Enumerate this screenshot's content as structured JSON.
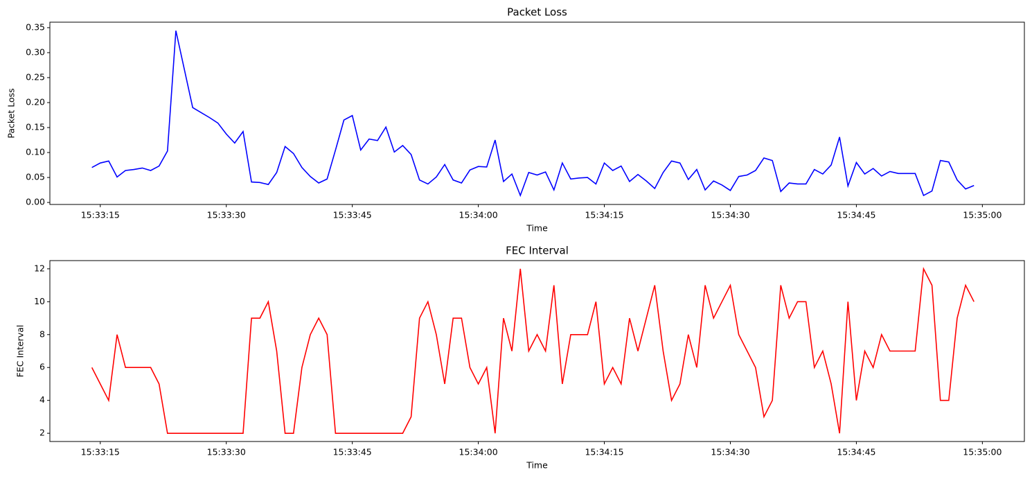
{
  "chart_data": [
    {
      "type": "line",
      "title": "Packet Loss",
      "xlabel": "Time",
      "ylabel": "Packet Loss",
      "color": "#0000ff",
      "x": [
        "15:33:14",
        "15:33:15",
        "15:33:16",
        "15:33:17",
        "15:33:18",
        "15:33:19",
        "15:33:20",
        "15:33:21",
        "15:33:22",
        "15:33:23",
        "15:33:24",
        "15:33:25",
        "15:33:26",
        "15:33:27",
        "15:33:28",
        "15:33:29",
        "15:33:30",
        "15:33:31",
        "15:33:32",
        "15:33:33",
        "15:33:34",
        "15:33:35",
        "15:33:36",
        "15:33:37",
        "15:33:38",
        "15:33:39",
        "15:33:40",
        "15:33:41",
        "15:33:42",
        "15:33:43",
        "15:33:44",
        "15:33:45",
        "15:33:46",
        "15:33:47",
        "15:33:48",
        "15:33:49",
        "15:33:50",
        "15:33:51",
        "15:33:52",
        "15:33:53",
        "15:33:54",
        "15:33:55",
        "15:33:56",
        "15:33:57",
        "15:33:58",
        "15:33:59",
        "15:34:00",
        "15:34:01",
        "15:34:02",
        "15:34:03",
        "15:34:04",
        "15:34:05",
        "15:34:06",
        "15:34:07",
        "15:34:08",
        "15:34:09",
        "15:34:10",
        "15:34:11",
        "15:34:12",
        "15:34:13",
        "15:34:14",
        "15:34:15",
        "15:34:16",
        "15:34:17",
        "15:34:18",
        "15:34:19",
        "15:34:20",
        "15:34:21",
        "15:34:22",
        "15:34:23",
        "15:34:24",
        "15:34:25",
        "15:34:26",
        "15:34:27",
        "15:34:28",
        "15:34:29",
        "15:34:30",
        "15:34:31",
        "15:34:32",
        "15:34:33",
        "15:34:34",
        "15:34:35",
        "15:34:36",
        "15:34:37",
        "15:34:38",
        "15:34:39",
        "15:34:40",
        "15:34:41",
        "15:34:42",
        "15:34:43",
        "15:34:44",
        "15:34:45",
        "15:34:46",
        "15:34:47",
        "15:34:48",
        "15:34:49",
        "15:34:50",
        "15:34:51",
        "15:34:52",
        "15:34:53",
        "15:34:54",
        "15:34:55",
        "15:34:56",
        "15:34:57",
        "15:34:58",
        "15:34:59"
      ],
      "values": [
        0.07,
        0.079,
        0.083,
        0.051,
        0.064,
        0.066,
        0.069,
        0.064,
        0.073,
        0.103,
        0.344,
        0.267,
        0.19,
        0.18,
        0.17,
        0.159,
        0.137,
        0.119,
        0.142,
        0.041,
        0.04,
        0.036,
        0.06,
        0.112,
        0.098,
        0.07,
        0.052,
        0.039,
        0.047,
        0.105,
        0.165,
        0.174,
        0.105,
        0.127,
        0.124,
        0.151,
        0.101,
        0.114,
        0.096,
        0.045,
        0.037,
        0.051,
        0.076,
        0.045,
        0.039,
        0.065,
        0.072,
        0.071,
        0.125,
        0.042,
        0.057,
        0.014,
        0.06,
        0.055,
        0.061,
        0.025,
        0.079,
        0.047,
        0.049,
        0.05,
        0.037,
        0.079,
        0.064,
        0.073,
        0.042,
        0.056,
        0.043,
        0.028,
        0.06,
        0.083,
        0.079,
        0.046,
        0.066,
        0.025,
        0.043,
        0.035,
        0.024,
        0.052,
        0.055,
        0.064,
        0.089,
        0.084,
        0.022,
        0.039,
        0.037,
        0.037,
        0.066,
        0.057,
        0.075,
        0.131,
        0.033,
        0.08,
        0.057,
        0.068,
        0.053,
        0.062,
        0.058,
        0.058,
        0.058,
        0.014,
        0.023,
        0.084,
        0.081,
        0.045,
        0.027,
        0.034
      ],
      "xlim": [
        "15:33:09",
        "15:35:05"
      ],
      "xticks": [
        "15:33:15",
        "15:33:30",
        "15:33:45",
        "15:34:00",
        "15:34:15",
        "15:34:30",
        "15:34:45",
        "15:35:00"
      ],
      "ylim": [
        -0.004,
        0.361
      ],
      "yticks": [
        {
          "value": 0,
          "label": "0.00"
        },
        {
          "value": 0.05,
          "label": "0.05"
        },
        {
          "value": 0.1,
          "label": "0.10"
        },
        {
          "value": 0.15,
          "label": "0.15"
        },
        {
          "value": 0.2,
          "label": "0.20"
        },
        {
          "value": 0.25,
          "label": "0.25"
        },
        {
          "value": 0.3,
          "label": "0.30"
        },
        {
          "value": 0.35,
          "label": "0.35"
        }
      ]
    },
    {
      "type": "line",
      "title": "FEC Interval",
      "xlabel": "Time",
      "ylabel": "FEC Interval",
      "color": "#ff0000",
      "x": [
        "15:33:14",
        "15:33:15",
        "15:33:16",
        "15:33:17",
        "15:33:18",
        "15:33:19",
        "15:33:20",
        "15:33:21",
        "15:33:22",
        "15:33:23",
        "15:33:24",
        "15:33:25",
        "15:33:26",
        "15:33:27",
        "15:33:28",
        "15:33:29",
        "15:33:30",
        "15:33:31",
        "15:33:32",
        "15:33:33",
        "15:33:34",
        "15:33:35",
        "15:33:36",
        "15:33:37",
        "15:33:38",
        "15:33:39",
        "15:33:40",
        "15:33:41",
        "15:33:42",
        "15:33:43",
        "15:33:44",
        "15:33:45",
        "15:33:46",
        "15:33:47",
        "15:33:48",
        "15:33:49",
        "15:33:50",
        "15:33:51",
        "15:33:52",
        "15:33:53",
        "15:33:54",
        "15:33:55",
        "15:33:56",
        "15:33:57",
        "15:33:58",
        "15:33:59",
        "15:34:00",
        "15:34:01",
        "15:34:02",
        "15:34:03",
        "15:34:04",
        "15:34:05",
        "15:34:06",
        "15:34:07",
        "15:34:08",
        "15:34:09",
        "15:34:10",
        "15:34:11",
        "15:34:12",
        "15:34:13",
        "15:34:14",
        "15:34:15",
        "15:34:16",
        "15:34:17",
        "15:34:18",
        "15:34:19",
        "15:34:20",
        "15:34:21",
        "15:34:22",
        "15:34:23",
        "15:34:24",
        "15:34:25",
        "15:34:26",
        "15:34:27",
        "15:34:28",
        "15:34:29",
        "15:34:30",
        "15:34:31",
        "15:34:32",
        "15:34:33",
        "15:34:34",
        "15:34:35",
        "15:34:36",
        "15:34:37",
        "15:34:38",
        "15:34:39",
        "15:34:40",
        "15:34:41",
        "15:34:42",
        "15:34:43",
        "15:34:44",
        "15:34:45",
        "15:34:46",
        "15:34:47",
        "15:34:48",
        "15:34:49",
        "15:34:50",
        "15:34:51",
        "15:34:52",
        "15:34:53",
        "15:34:54",
        "15:34:55",
        "15:34:56",
        "15:34:57",
        "15:34:58",
        "15:34:59"
      ],
      "values": [
        6,
        5,
        4,
        8,
        6,
        6,
        6,
        6,
        5,
        2,
        2,
        2,
        2,
        2,
        2,
        2,
        2,
        2,
        2,
        9,
        9,
        10,
        7,
        2,
        2,
        6,
        8,
        9,
        8,
        2,
        2,
        2,
        2,
        2,
        2,
        2,
        2,
        2,
        3,
        9,
        10,
        8,
        5,
        9,
        9,
        6,
        5,
        6,
        2,
        9,
        7,
        12,
        7,
        8,
        7,
        11,
        5,
        8,
        8,
        8,
        10,
        5,
        6,
        5,
        9,
        7,
        9,
        11,
        7,
        4,
        5,
        8,
        6,
        11,
        9,
        10,
        11,
        8,
        7,
        6,
        3,
        4,
        11,
        9,
        10,
        10,
        6,
        7,
        5,
        2,
        10,
        4,
        7,
        6,
        8,
        7,
        7,
        7,
        7,
        12,
        11,
        4,
        4,
        9,
        11,
        10
      ],
      "xlim": [
        "15:33:09",
        "15:35:05"
      ],
      "xticks": [
        "15:33:15",
        "15:33:30",
        "15:33:45",
        "15:34:00",
        "15:34:15",
        "15:34:30",
        "15:34:45",
        "15:35:00"
      ],
      "ylim": [
        1.5,
        12.5
      ],
      "yticks": [
        2,
        4,
        6,
        8,
        10,
        12
      ]
    }
  ]
}
